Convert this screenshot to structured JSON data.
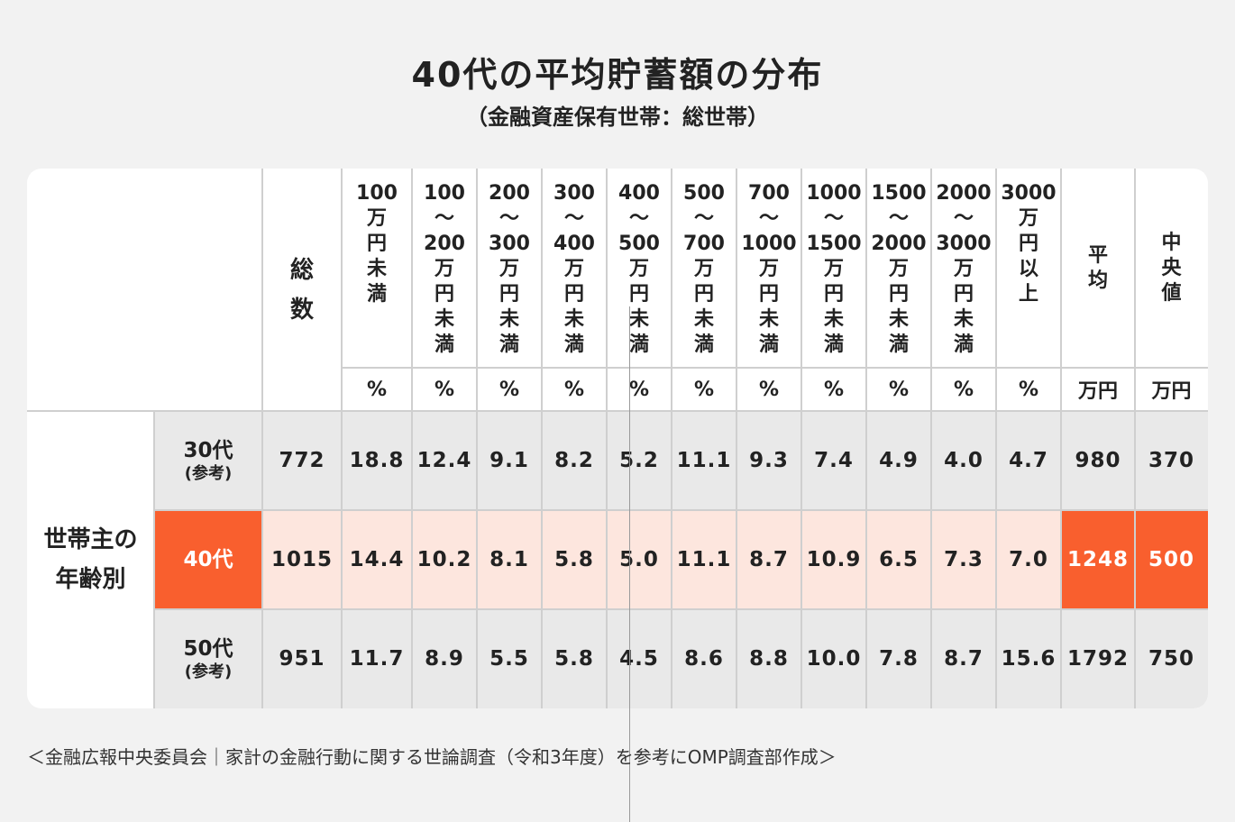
{
  "title": "40代の平均貯蓄額の分布",
  "subtitle": "（金融資産保有世帯：総世帯）",
  "colors": {
    "highlight": "#f95f2e",
    "highlight_light": "#fde6de",
    "row_gray": "#e9e9e9",
    "background": "#f2f2f2"
  },
  "chart_data": {
    "type": "table",
    "group_label": "世帯主の\n年齢別",
    "columns": [
      {
        "header": "総\n数",
        "unit": ""
      },
      {
        "header": "100\n万\n円\n未\n満",
        "unit": "%"
      },
      {
        "header": "100\n〜\n200\n万\n円\n未\n満",
        "unit": "%"
      },
      {
        "header": "200\n〜\n300\n万\n円\n未\n満",
        "unit": "%"
      },
      {
        "header": "300\n〜\n400\n万\n円\n未\n満",
        "unit": "%"
      },
      {
        "header": "400\n〜\n500\n万\n円\n未\n満",
        "unit": "%"
      },
      {
        "header": "500\n〜\n700\n万\n円\n未\n満",
        "unit": "%"
      },
      {
        "header": "700\n〜\n1000\n万\n円\n未\n満",
        "unit": "%"
      },
      {
        "header": "1000\n〜\n1500\n万\n円\n未\n満",
        "unit": "%"
      },
      {
        "header": "1500\n〜\n2000\n万\n円\n未\n満",
        "unit": "%"
      },
      {
        "header": "2000\n〜\n3000\n万\n円\n未\n満",
        "unit": "%"
      },
      {
        "header": "3000\n万\n円\n以\n上",
        "unit": "%"
      },
      {
        "header": "平\n均",
        "unit": "万円"
      },
      {
        "header": "中\n央\n値",
        "unit": "万円"
      }
    ],
    "rows": [
      {
        "label": "30代",
        "note": "(参考)",
        "highlight": false,
        "values": [
          "772",
          "18.8",
          "12.4",
          "9.1",
          "8.2",
          "5.2",
          "11.1",
          "9.3",
          "7.4",
          "4.9",
          "4.0",
          "4.7",
          "980",
          "370"
        ]
      },
      {
        "label": "40代",
        "note": "",
        "highlight": true,
        "values": [
          "1015",
          "14.4",
          "10.2",
          "8.1",
          "5.8",
          "5.0",
          "11.1",
          "8.7",
          "10.9",
          "6.5",
          "7.3",
          "7.0",
          "1248",
          "500"
        ]
      },
      {
        "label": "50代",
        "note": "(参考)",
        "highlight": false,
        "values": [
          "951",
          "11.7",
          "8.9",
          "5.5",
          "5.8",
          "4.5",
          "8.6",
          "8.8",
          "10.0",
          "7.8",
          "8.7",
          "15.6",
          "1792",
          "750"
        ]
      }
    ]
  },
  "footnote": "＜金融広報中央委員会｜家計の金融行動に関する世論調査（令和3年度）を参考にOMP調査部作成＞"
}
